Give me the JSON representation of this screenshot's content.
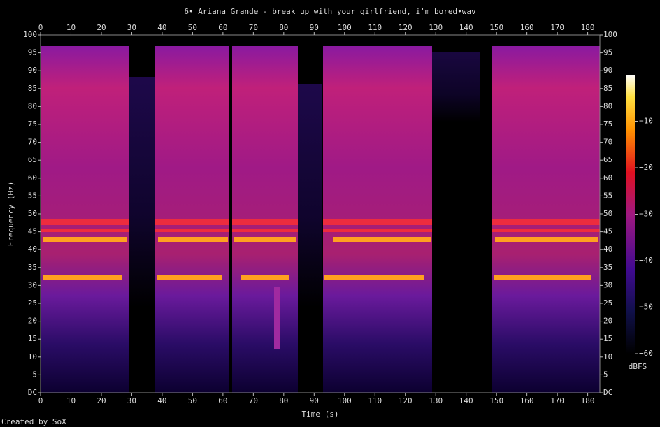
{
  "chart_data": {
    "type": "spectrogram",
    "title": "6• Ariana Grande - break up with your girlfriend, i'm bored•wav",
    "xlabel": "Time (s)",
    "ylabel": "Frequency (Hz)",
    "xlim": [
      0,
      184
    ],
    "xticks": [
      0,
      10,
      20,
      30,
      40,
      50,
      60,
      70,
      80,
      90,
      100,
      110,
      120,
      130,
      140,
      150,
      160,
      170,
      180
    ],
    "ylim": [
      0,
      100
    ],
    "yticks": [
      {
        "value": 0,
        "label": "DC"
      },
      5,
      10,
      15,
      20,
      25,
      30,
      35,
      40,
      45,
      50,
      55,
      60,
      65,
      70,
      75,
      80,
      85,
      90,
      95,
      100
    ],
    "colorbar": {
      "label": "dBFS",
      "lim": [
        -60,
        0
      ],
      "ticks": [
        {
          "value": -60,
          "label": "−60"
        },
        {
          "value": -50,
          "label": "−50"
        },
        {
          "value": -40,
          "label": "−40"
        },
        {
          "value": -30,
          "label": "−30"
        },
        {
          "value": -20,
          "label": "−20"
        },
        {
          "value": -10,
          "label": "−10"
        }
      ]
    },
    "footer": "Created by SoX"
  }
}
